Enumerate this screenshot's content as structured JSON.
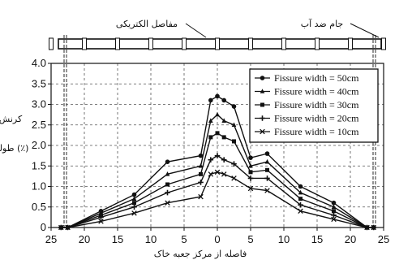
{
  "chart_data": {
    "type": "line",
    "title": "",
    "xlabel": "فاصله از مرکز جعبه خاک",
    "ylabel": "کرنش طولی (٪)",
    "ylabel_lines": [
      "کرنش",
      "طولی (٪)"
    ],
    "xlim": [
      25,
      -25
    ],
    "ylim": [
      0,
      4.0
    ],
    "x_ticks": [
      25,
      20,
      15,
      10,
      5,
      0,
      5,
      10,
      15,
      20,
      25
    ],
    "y_ticks": [
      "0",
      "0.5",
      "1.0",
      "1.5",
      "2.0",
      "2.5",
      "3.0",
      "3.5",
      "4.0"
    ],
    "grid": true,
    "legend_position": "top-right",
    "annotations": {
      "joints_label": "مفاصل الکتریکی",
      "waterproof_label": "جام ضد آب"
    },
    "x": [
      -23.5,
      -22.5,
      -17.5,
      -12.5,
      -7.5,
      -2.5,
      -1,
      0,
      1,
      2.5,
      5,
      7.5,
      12.5,
      17.5,
      22.5,
      23.5
    ],
    "series": [
      {
        "name": "Fissure width = 50cm",
        "marker": "circle",
        "values": [
          0,
          0,
          0.4,
          0.8,
          1.6,
          1.75,
          3.1,
          3.2,
          3.1,
          2.95,
          1.7,
          1.8,
          1.0,
          0.6,
          0,
          0
        ]
      },
      {
        "name": "Fissure width = 40cm",
        "marker": "triangle",
        "values": [
          0,
          0,
          0.35,
          0.7,
          1.3,
          1.5,
          2.6,
          2.75,
          2.6,
          2.5,
          1.5,
          1.6,
          0.85,
          0.5,
          0,
          0
        ]
      },
      {
        "name": "Fissure width = 30cm",
        "marker": "square",
        "values": [
          0,
          0,
          0.3,
          0.6,
          1.05,
          1.3,
          2.2,
          2.3,
          2.2,
          2.1,
          1.35,
          1.4,
          0.7,
          0.4,
          0,
          0
        ]
      },
      {
        "name": "Fissure width = 20cm",
        "marker": "plus",
        "values": [
          0,
          0,
          0.25,
          0.5,
          0.85,
          1.1,
          1.65,
          1.75,
          1.65,
          1.55,
          1.2,
          1.2,
          0.55,
          0.3,
          0,
          0
        ]
      },
      {
        "name": "Fissure width = 10cm",
        "marker": "x",
        "values": [
          0,
          0,
          0.15,
          0.35,
          0.6,
          0.75,
          1.3,
          1.35,
          1.3,
          1.2,
          0.95,
          0.9,
          0.4,
          0.2,
          0,
          0
        ]
      }
    ],
    "colors": {
      "lines": "#111111",
      "grid": "#555555",
      "background": "#ffffff"
    }
  }
}
